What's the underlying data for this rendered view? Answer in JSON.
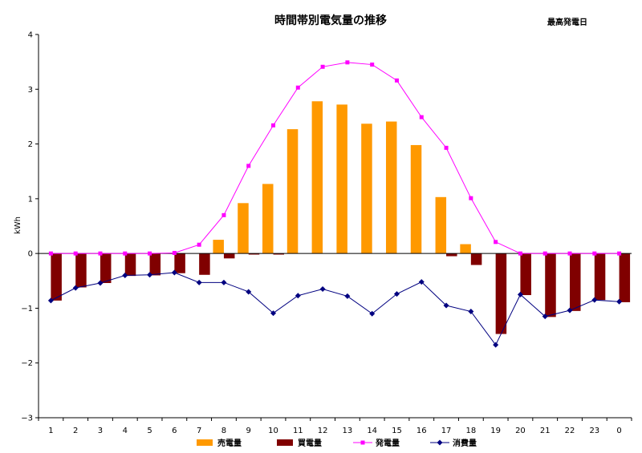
{
  "chart_data": {
    "type": "bar",
    "title": "時間帯別電気量の推移",
    "subtitle": "最高発電日",
    "xlabel": "",
    "ylabel": "kWh",
    "ylim": [
      -3,
      4
    ],
    "yticks": [
      4,
      3,
      2,
      1,
      0,
      -1,
      -2,
      -3
    ],
    "grid": false,
    "legend": "bottom",
    "categories": [
      "1",
      "2",
      "3",
      "4",
      "5",
      "6",
      "7",
      "8",
      "9",
      "10",
      "11",
      "12",
      "13",
      "14",
      "15",
      "16",
      "17",
      "18",
      "19",
      "20",
      "21",
      "22",
      "23",
      "0"
    ],
    "series": [
      {
        "name": "売電量",
        "kind": "bar",
        "color": "#FF9900",
        "values": [
          0,
          0,
          0,
          0,
          0,
          0,
          0,
          0.25,
          0.92,
          1.27,
          2.27,
          2.78,
          2.72,
          2.37,
          2.41,
          1.98,
          1.03,
          0.17,
          0,
          0,
          0,
          0,
          0,
          0
        ]
      },
      {
        "name": "買電量",
        "kind": "bar",
        "color": "#800000",
        "values": [
          -0.86,
          -0.62,
          -0.54,
          -0.41,
          -0.4,
          -0.36,
          -0.39,
          -0.09,
          -0.02,
          -0.02,
          0,
          0,
          0,
          0,
          0,
          0,
          -0.05,
          -0.21,
          -1.47,
          -0.76,
          -1.16,
          -1.05,
          -0.85,
          -0.89
        ]
      },
      {
        "name": "発電量",
        "kind": "line",
        "color": "#FF00FF",
        "marker": "square",
        "values": [
          0,
          0,
          0,
          0,
          0,
          0.01,
          0.16,
          0.7,
          1.6,
          2.34,
          3.03,
          3.41,
          3.49,
          3.45,
          3.16,
          2.49,
          1.93,
          1.01,
          0.21,
          0,
          0,
          0,
          0,
          0
        ]
      },
      {
        "name": "消費量",
        "kind": "line",
        "color": "#000080",
        "marker": "diamond",
        "values": [
          -0.86,
          -0.63,
          -0.54,
          -0.4,
          -0.39,
          -0.35,
          -0.53,
          -0.53,
          -0.7,
          -1.09,
          -0.77,
          -0.65,
          -0.78,
          -1.1,
          -0.74,
          -0.52,
          -0.95,
          -1.06,
          -1.67,
          -0.75,
          -1.15,
          -1.04,
          -0.85,
          -0.88
        ]
      }
    ]
  }
}
